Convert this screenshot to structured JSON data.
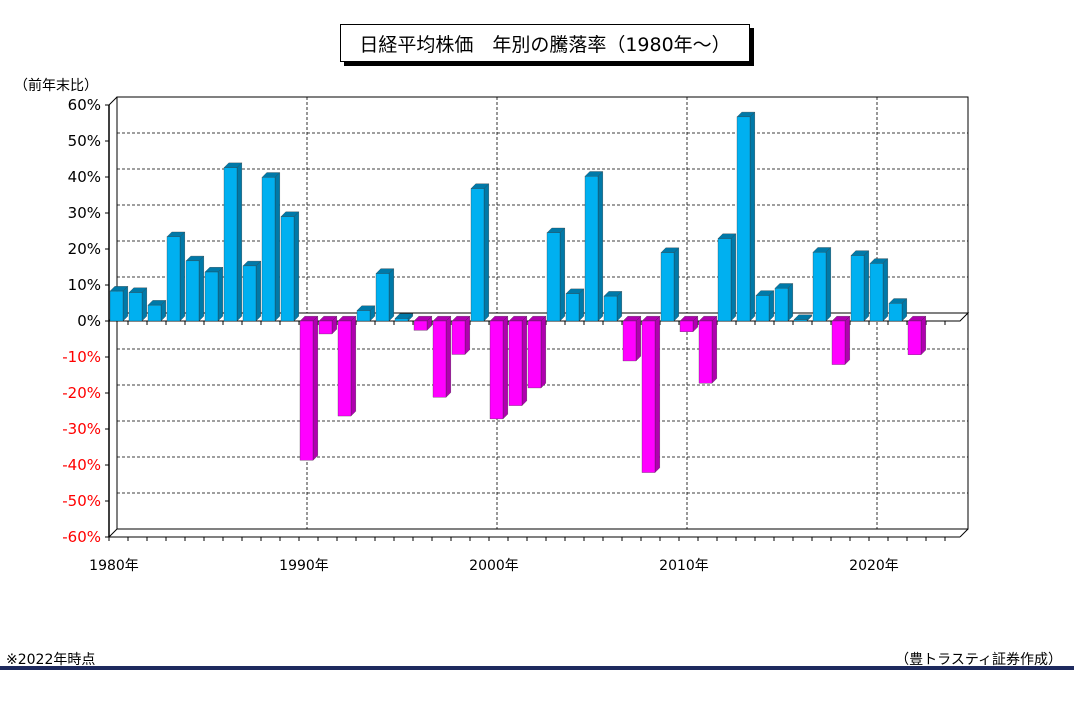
{
  "title": "日経平均株価　年別の騰落率（1980年～）",
  "unit_label": "（前年末比）",
  "footnote": "※2022年時点",
  "credit": "（豊トラスティ証券作成）",
  "colors": {
    "positive": "#00b0f0",
    "negative": "#ff00ff",
    "positive_side": "#0079a8",
    "negative_side": "#b000b0",
    "bottom_rule": "#1e2a5e"
  },
  "chart_data": {
    "type": "bar",
    "categories": [
      "1980年",
      "1981年",
      "1982年",
      "1983年",
      "1984年",
      "1985年",
      "1986年",
      "1987年",
      "1988年",
      "1989年",
      "1990年",
      "1991年",
      "1992年",
      "1993年",
      "1994年",
      "1995年",
      "1996年",
      "1997年",
      "1998年",
      "1999年",
      "2000年",
      "2001年",
      "2002年",
      "2003年",
      "2004年",
      "2005年",
      "2006年",
      "2007年",
      "2008年",
      "2009年",
      "2010年",
      "2011年",
      "2012年",
      "2013年",
      "2014年",
      "2015年",
      "2016年",
      "2017年",
      "2018年",
      "2019年",
      "2020年",
      "2021年",
      "2022年"
    ],
    "values": [
      8.3,
      7.9,
      4.4,
      23.4,
      16.7,
      13.6,
      42.6,
      15.3,
      39.9,
      29.0,
      -38.7,
      -3.6,
      -26.4,
      2.9,
      13.2,
      0.7,
      -2.6,
      -21.2,
      -9.3,
      36.8,
      -27.2,
      -23.5,
      -18.6,
      24.5,
      7.6,
      40.2,
      6.9,
      -11.1,
      -42.1,
      19.0,
      -3.0,
      -17.3,
      22.9,
      56.7,
      7.1,
      9.1,
      0.4,
      19.1,
      -12.1,
      18.2,
      16.0,
      4.9,
      -9.4
    ],
    "xticks": [
      "1980年",
      "1990年",
      "2000年",
      "2010年",
      "2020年"
    ],
    "yticks": [
      "60%",
      "50%",
      "40%",
      "30%",
      "20%",
      "10%",
      "0%",
      "-10%",
      "-20%",
      "-30%",
      "-40%",
      "-50%",
      "-60%"
    ],
    "ylim": [
      -60,
      60
    ],
    "grid": true,
    "grid_style": "dashed"
  }
}
